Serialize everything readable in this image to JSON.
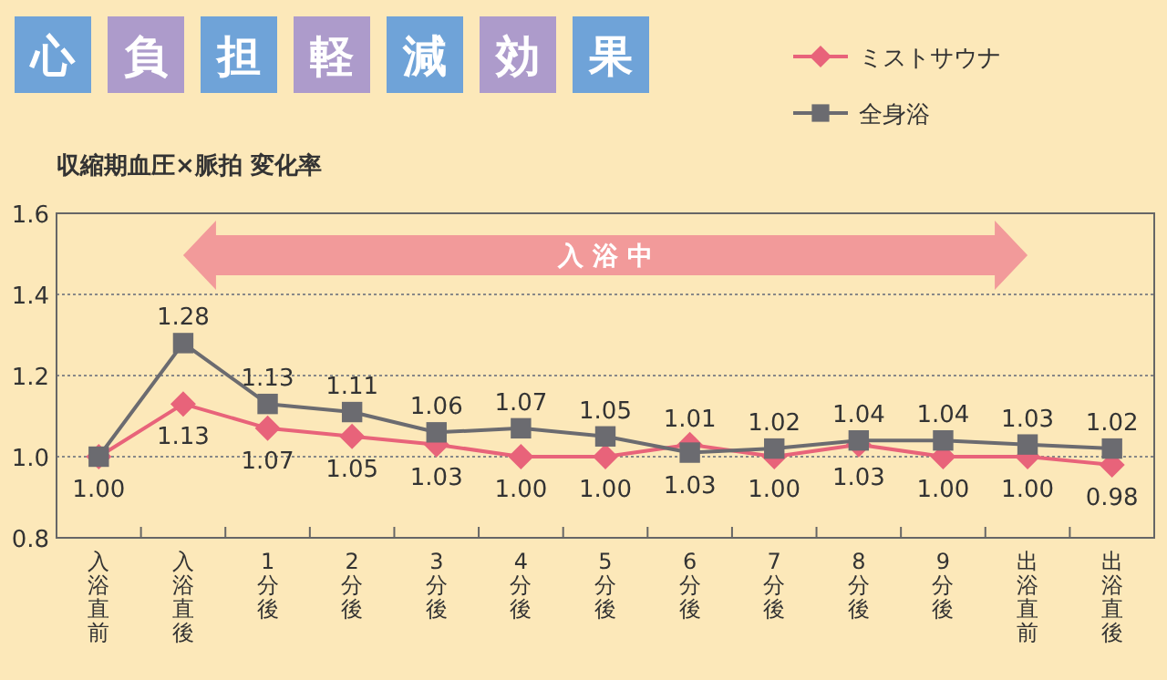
{
  "chart_data": {
    "type": "line",
    "title": "心負担軽減効果",
    "subtitle": "収縮期血圧×脈拍 変化率",
    "categories": [
      "入浴直前",
      "入浴直後",
      "1分後",
      "2分後",
      "3分後",
      "4分後",
      "5分後",
      "6分後",
      "7分後",
      "8分後",
      "9分後",
      "出浴直前",
      "出浴直後"
    ],
    "series": [
      {
        "name": "ミストサウナ",
        "color": "#e8637a",
        "marker": "diamond",
        "values": [
          1.0,
          1.13,
          1.07,
          1.05,
          1.03,
          1.0,
          1.0,
          1.03,
          1.0,
          1.03,
          1.0,
          1.0,
          0.98
        ],
        "value_labels": [
          "1.00",
          "1.13",
          "1.07",
          "1.05",
          "1.03",
          "1.00",
          "1.00",
          "1.03",
          "1.00",
          "1.03",
          "1.00",
          "1.00",
          "0.98"
        ]
      },
      {
        "name": "全身浴",
        "color": "#6b6b70",
        "marker": "square",
        "values": [
          1.0,
          1.28,
          1.13,
          1.11,
          1.06,
          1.07,
          1.05,
          1.01,
          1.02,
          1.04,
          1.04,
          1.03,
          1.02
        ],
        "value_labels": [
          null,
          "1.28",
          "1.13",
          "1.11",
          "1.06",
          "1.07",
          "1.05",
          "1.01",
          "1.02",
          "1.04",
          "1.04",
          "1.03",
          "1.02"
        ]
      }
    ],
    "ylim": [
      0.8,
      1.6
    ],
    "yticks": [
      0.8,
      {
        "value": 1.0,
        "label": "1.0"
      },
      1.2,
      1.4,
      1.6
    ],
    "grid": "y",
    "legend": "top right",
    "annotations": [
      "入 浴 中"
    ]
  }
}
